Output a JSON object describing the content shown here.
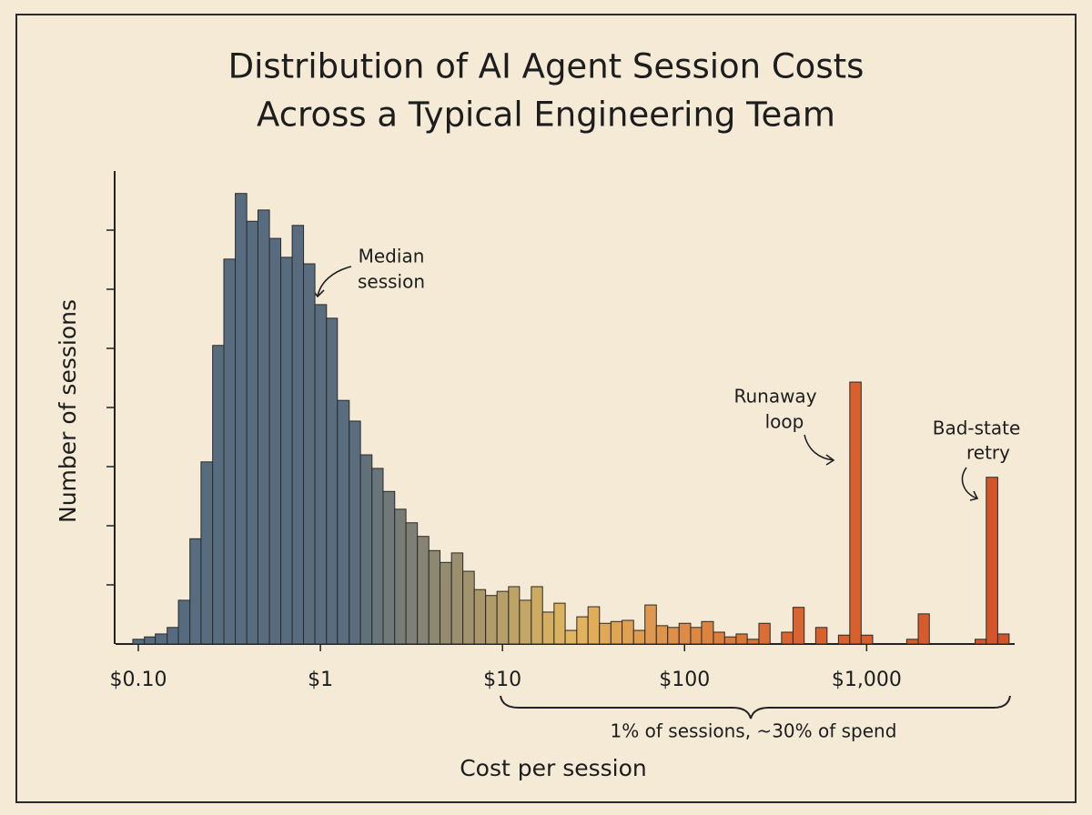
{
  "chart_data": {
    "type": "histogram",
    "title": [
      "Distribution of AI Agent Session Costs",
      "Across a Typical Engineering Team"
    ],
    "xlabel": "Cost per session",
    "ylabel": "Number of sessions",
    "xscale": "log",
    "xlim": [
      0.075,
      6500
    ],
    "xticks": [
      {
        "value": 0.1,
        "label": "$0.10"
      },
      {
        "value": 1,
        "label": "$1"
      },
      {
        "value": 10,
        "label": "$10"
      },
      {
        "value": 100,
        "label": "$100"
      },
      {
        "value": 1000,
        "label": "$1,000"
      }
    ],
    "ylim": [
      0,
      8
    ],
    "yticks": [
      1,
      2,
      3,
      4,
      5,
      6,
      7
    ],
    "colors": [
      "#566b80",
      "#5a6d7e",
      "#e2b65e",
      "#d9652f",
      "#d4542a"
    ],
    "bins": [
      0.0933,
      0.108,
      0.124,
      0.144,
      0.166,
      0.192,
      0.221,
      0.256,
      0.295,
      0.341,
      0.394,
      0.454,
      0.525,
      0.606,
      0.7,
      0.808,
      0.933,
      1.08,
      1.24,
      1.44,
      1.66,
      1.92,
      2.21,
      2.56,
      2.95,
      3.41,
      3.94,
      4.54,
      5.25,
      6.06,
      7.0,
      8.08,
      9.33,
      10.8,
      12.4,
      14.4,
      16.6,
      19.2,
      22.1,
      25.6,
      29.5,
      34.1,
      39.4,
      45.4,
      52.5,
      60.6,
      70.0,
      80.8,
      93.3,
      108,
      124,
      144,
      166,
      192,
      221,
      256,
      295,
      341,
      394,
      454,
      525,
      606,
      700,
      808,
      933,
      1080,
      1240,
      1440,
      1660,
      1920,
      2210,
      2560,
      2950,
      3410,
      3940,
      4540,
      5250,
      6060
    ],
    "counts": [
      0.08,
      0.12,
      0.17,
      0.28,
      0.74,
      1.78,
      3.08,
      5.05,
      6.51,
      7.62,
      7.15,
      7.34,
      6.86,
      6.54,
      7.08,
      6.43,
      5.74,
      5.51,
      4.12,
      3.77,
      3.2,
      2.97,
      2.58,
      2.28,
      2.05,
      1.82,
      1.58,
      1.38,
      1.54,
      1.23,
      0.92,
      0.82,
      0.89,
      0.97,
      0.74,
      0.97,
      0.54,
      0.69,
      0.23,
      0.46,
      0.63,
      0.35,
      0.38,
      0.4,
      0.23,
      0.66,
      0.31,
      0.28,
      0.35,
      0.28,
      0.38,
      0.2,
      0.12,
      0.17,
      0.08,
      0.35,
      0,
      0.2,
      0.62,
      0,
      0.28,
      0,
      0.15,
      4.43,
      0.15,
      0,
      0,
      0,
      0.08,
      0.51,
      0,
      0,
      0,
      0,
      0.08,
      2.82,
      0.17
    ],
    "annotations": [
      {
        "lines": [
          "Median",
          "session"
        ]
      },
      {
        "lines": [
          "Runaway",
          "loop"
        ]
      },
      {
        "lines": [
          "Bad-state",
          "retry"
        ]
      }
    ],
    "brace_label": "1% of sessions, ~30% of spend"
  }
}
